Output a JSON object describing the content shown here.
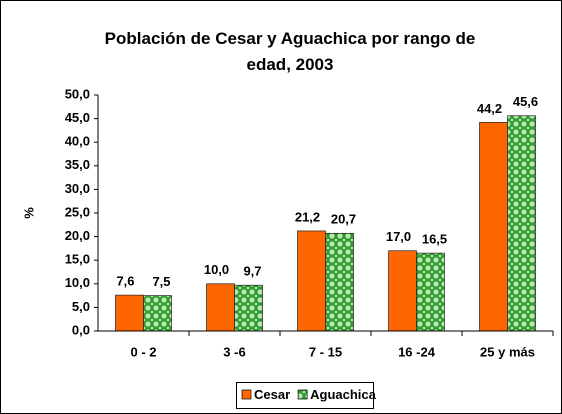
{
  "chart_data": {
    "type": "bar",
    "title": "Población de Cesar y Aguachica por rango de edad, 2003",
    "y_label": "%",
    "categories": [
      "0 - 2",
      "3 -6",
      "7 - 15",
      "16 -24",
      "25 y más"
    ],
    "series": [
      {
        "name": "Cesar",
        "color": "#ff6600",
        "values": [
          7.6,
          10.0,
          21.2,
          17.0,
          44.2
        ],
        "value_labels": [
          "7,6",
          "10,0",
          "21,2",
          "17,0",
          "44,2"
        ]
      },
      {
        "name": "Aguachica",
        "color": "#2e9a2e",
        "values": [
          7.5,
          9.7,
          20.7,
          16.5,
          45.6
        ],
        "value_labels": [
          "7,5",
          "9,7",
          "20,7",
          "16,5",
          "45,6"
        ]
      }
    ],
    "ylim": [
      0,
      50
    ],
    "yticks": [
      {
        "value": 0,
        "label": "0,0"
      },
      {
        "value": 5,
        "label": "5,0"
      },
      {
        "value": 10,
        "label": "10,0"
      },
      {
        "value": 15,
        "label": "15,0"
      },
      {
        "value": 20,
        "label": "20,0"
      },
      {
        "value": 25,
        "label": "25,0"
      },
      {
        "value": 30,
        "label": "30,0"
      },
      {
        "value": 35,
        "label": "35,0"
      },
      {
        "value": 40,
        "label": "40,0"
      },
      {
        "value": 45,
        "label": "45,0"
      },
      {
        "value": 50,
        "label": "50,0"
      }
    ],
    "grid": false,
    "legend": "bottom"
  }
}
